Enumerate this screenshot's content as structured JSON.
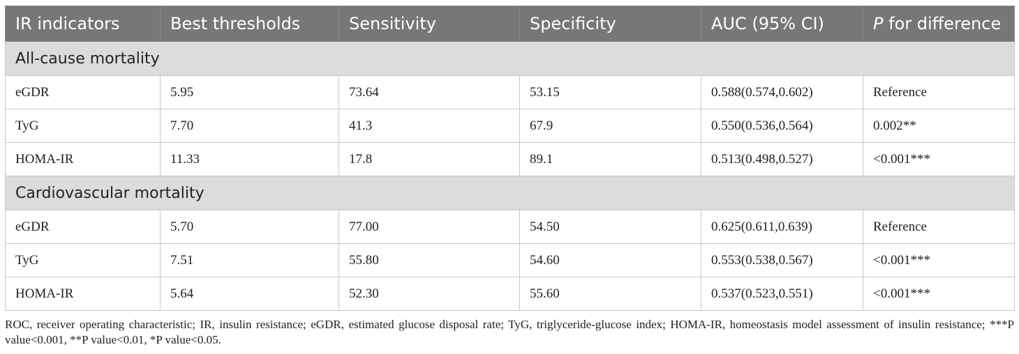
{
  "table": {
    "headers": [
      "IR indicators",
      "Best thresholds",
      "Sensitivity",
      "Specificity",
      "AUC (95% CI)"
    ],
    "last_header_italic": "P",
    "last_header_rest": " for difference",
    "sections": [
      {
        "title": "All-cause mortality",
        "rows": [
          [
            "eGDR",
            "5.95",
            "73.64",
            "53.15",
            "0.588(0.574,0.602)",
            "Reference"
          ],
          [
            "TyG",
            "7.70",
            "41.3",
            "67.9",
            "0.550(0.536,0.564)",
            "0.002**"
          ],
          [
            "HOMA-IR",
            "11.33",
            "17.8",
            "89.1",
            "0.513(0.498,0.527)",
            "<0.001***"
          ]
        ]
      },
      {
        "title": "Cardiovascular mortality",
        "rows": [
          [
            "eGDR",
            "5.70",
            "77.00",
            "54.50",
            "0.625(0.611,0.639)",
            "Reference"
          ],
          [
            "TyG",
            "7.51",
            "55.80",
            "54.60",
            "0.553(0.538,0.567)",
            "<0.001***"
          ],
          [
            "HOMA-IR",
            "5.64",
            "52.30",
            "55.60",
            "0.537(0.523,0.551)",
            "<0.001***"
          ]
        ]
      }
    ]
  },
  "footnote": "ROC, receiver operating characteristic; IR, insulin resistance; eGDR, estimated glucose disposal rate; TyG, triglyceride-glucose index; HOMA-IR, homeostasis model assessment of insulin resistance; ***P value<0.001, **P value<0.01, *P value<0.05.",
  "colors": {
    "header_bg": "#777777",
    "section_bg": "#dcdcdc",
    "border": "#c8c8c8"
  }
}
